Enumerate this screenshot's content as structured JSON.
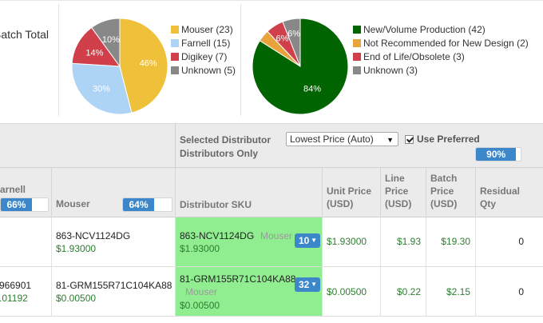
{
  "summary": {
    "batch_total_label": "Batch Total",
    "distributors_pie": {
      "slices": [
        {
          "label": "Mouser (23)",
          "pct_text": "46%",
          "value": 23,
          "color": "#efc13b"
        },
        {
          "label": "Farnell (15)",
          "pct_text": "30%",
          "value": 15,
          "color": "#aed4f5"
        },
        {
          "label": "Digikey (7)",
          "pct_text": "14%",
          "value": 7,
          "color": "#d1404a"
        },
        {
          "label": "Unknown (5)",
          "pct_text": "10%",
          "value": 5,
          "color": "#888888"
        }
      ]
    },
    "lifecycle_pie": {
      "slices": [
        {
          "label": "New/Volume Production (42)",
          "pct_text": "84%",
          "value": 42,
          "color": "#006400"
        },
        {
          "label": "Not Recommended for New Design (2)",
          "pct_text": "",
          "value": 2,
          "color": "#e8a33d"
        },
        {
          "label": "End of Life/Obsolete (3)",
          "pct_text": "6%",
          "value": 3,
          "color": "#d1404a"
        },
        {
          "label": "Unknown (3)",
          "pct_text": "6%",
          "value": 3,
          "color": "#888888"
        }
      ]
    }
  },
  "header": {
    "selected_distributor_label": "Selected Distributor\nDistributors Only",
    "selected_distributor_line1": "Selected Distributor",
    "selected_distributor_line2": "Distributors Only",
    "dropdown_value": "Lowest Price (Auto)",
    "use_preferred_label": "Use Preferred",
    "use_preferred_checked": true,
    "coverage_pct_text": "90%",
    "coverage_pct": 90
  },
  "columns": {
    "farnell": {
      "label": "arnell",
      "pct_text": "66%",
      "pct": 66
    },
    "mouser": {
      "label": "Mouser",
      "pct_text": "64%",
      "pct": 64
    },
    "distributor_sku": "Distributor SKU",
    "unit_price": [
      "Unit Price",
      "(USD)"
    ],
    "line_price": [
      "Line",
      "Price",
      "(USD)"
    ],
    "batch_price": [
      "Batch",
      "Price",
      "(USD)"
    ],
    "residual_qty": [
      "Residual",
      "Qty"
    ]
  },
  "rows": [
    {
      "farnell_sku": "",
      "farnell_price": "",
      "mouser_sku": "863-NCV1124DG",
      "mouser_price": "$1.93000",
      "dist_sku": "863-NCV1124DG",
      "dist_name": "Mouser",
      "dist_price": "$1.93000",
      "qty": "10",
      "unit_price": "$1.93000",
      "line_price": "$1.93",
      "batch_price": "$19.30",
      "residual_qty": "0"
    },
    {
      "farnell_sku": "966901",
      "farnell_price": ".01192",
      "mouser_sku": "81-GRM155R71C104KA88",
      "mouser_price": "$0.00500",
      "dist_sku": "81-GRM155R71C104KA88",
      "dist_name": "Mouser",
      "dist_price": "$0.00500",
      "qty": "32",
      "unit_price": "$0.00500",
      "line_price": "$0.22",
      "batch_price": "$2.15",
      "residual_qty": "0"
    }
  ]
}
